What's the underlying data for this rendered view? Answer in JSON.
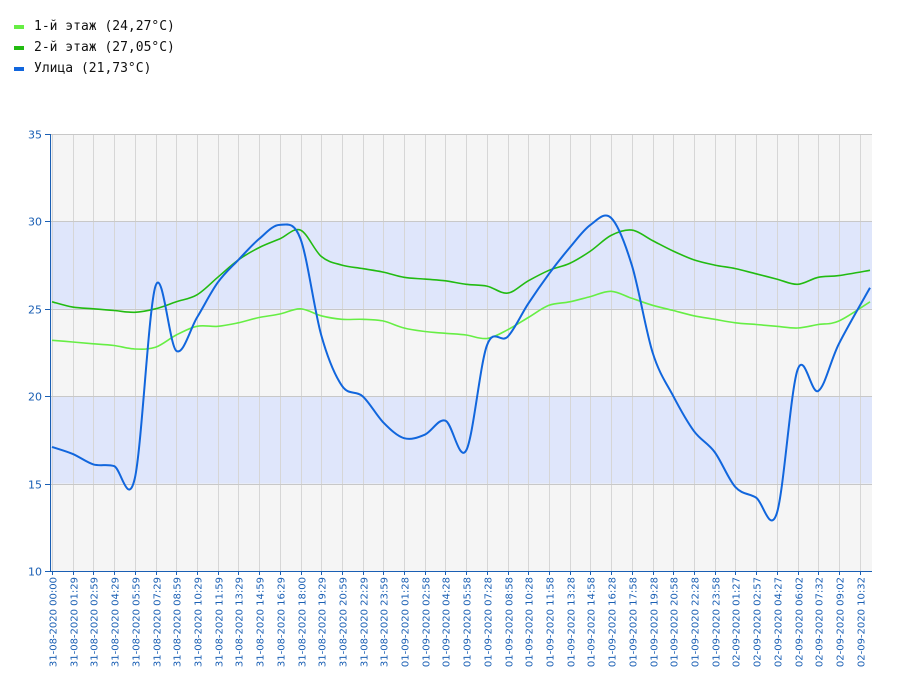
{
  "legend": [
    {
      "label": "1-й этаж (24,27°C)",
      "color": "#66ee44"
    },
    {
      "label": "2-й этаж (27,05°C)",
      "color": "#22bb11"
    },
    {
      "label": "Улица (21,73°C)",
      "color": "#1166dd"
    }
  ],
  "chart_data": {
    "type": "line",
    "title": "",
    "xlabel": "",
    "ylabel": "",
    "ylim": [
      10,
      35
    ],
    "yticks": [
      10,
      15,
      20,
      25,
      30,
      35
    ],
    "grid": true,
    "legend_position": "top-left",
    "band_colors": {
      "light": "#f5f5f5",
      "highlight": "#dfe6fb"
    },
    "highlight_bands": [
      [
        15,
        20
      ],
      [
        25,
        30
      ]
    ],
    "x_tick_labels": [
      "31-08-2020 00:00",
      "31-08-2020 01:29",
      "31-08-2020 02:59",
      "31-08-2020 04:29",
      "31-08-2020 05:59",
      "31-08-2020 07:29",
      "31-08-2020 08:59",
      "31-08-2020 10:29",
      "31-08-2020 11:59",
      "31-08-2020 13:29",
      "31-08-2020 14:59",
      "31-08-2020 16:29",
      "31-08-2020 18:00",
      "31-08-2020 19:29",
      "31-08-2020 20:59",
      "31-08-2020 22:29",
      "31-08-2020 23:59",
      "01-09-2020 01:28",
      "01-09-2020 02:58",
      "01-09-2020 04:28",
      "01-09-2020 05:58",
      "01-09-2020 07:28",
      "01-09-2020 08:58",
      "01-09-2020 10:28",
      "01-09-2020 11:58",
      "01-09-2020 13:28",
      "01-09-2020 14:58",
      "01-09-2020 16:28",
      "01-09-2020 17:58",
      "01-09-2020 19:28",
      "01-09-2020 20:58",
      "01-09-2020 22:28",
      "01-09-2020 23:58",
      "02-09-2020 01:27",
      "02-09-2020 02:57",
      "02-09-2020 04:27",
      "02-09-2020 06:02",
      "02-09-2020 07:32",
      "02-09-2020 09:02",
      "02-09-2020 10:32"
    ],
    "x": [
      "31-08-2020 00:00",
      "31-08-2020 01:29",
      "31-08-2020 02:59",
      "31-08-2020 04:29",
      "31-08-2020 05:59",
      "31-08-2020 07:29",
      "31-08-2020 08:59",
      "31-08-2020 10:29",
      "31-08-2020 11:59",
      "31-08-2020 13:29",
      "31-08-2020 14:59",
      "31-08-2020 16:29",
      "31-08-2020 18:00",
      "31-08-2020 19:29",
      "31-08-2020 20:59",
      "31-08-2020 22:29",
      "31-08-2020 23:59",
      "01-09-2020 01:28",
      "01-09-2020 02:58",
      "01-09-2020 04:28",
      "01-09-2020 05:58",
      "01-09-2020 07:28",
      "01-09-2020 08:58",
      "01-09-2020 10:28",
      "01-09-2020 11:58",
      "01-09-2020 13:28",
      "01-09-2020 14:58",
      "01-09-2020 16:28",
      "01-09-2020 17:58",
      "01-09-2020 19:28",
      "01-09-2020 20:58",
      "01-09-2020 22:28",
      "01-09-2020 23:58",
      "02-09-2020 01:27",
      "02-09-2020 02:57",
      "02-09-2020 04:27",
      "02-09-2020 06:02",
      "02-09-2020 07:32",
      "02-09-2020 09:02",
      "02-09-2020 10:32"
    ],
    "series": [
      {
        "name": "1-й этаж (24,27°C)",
        "color": "#66ee44",
        "values": [
          23.2,
          23.1,
          23.0,
          22.9,
          22.7,
          22.8,
          23.5,
          24.0,
          24.0,
          24.2,
          24.5,
          24.7,
          25.0,
          24.6,
          24.4,
          24.4,
          24.3,
          23.9,
          23.7,
          23.6,
          23.5,
          23.3,
          23.8,
          24.5,
          25.2,
          25.4,
          25.7,
          26.0,
          25.6,
          25.2,
          24.9,
          24.6,
          24.4,
          24.2,
          24.1,
          24.0,
          23.9,
          24.1,
          24.3,
          25.4
        ]
      },
      {
        "name": "2-й этаж (27,05°C)",
        "color": "#22bb11",
        "values": [
          25.4,
          25.1,
          25.0,
          24.9,
          24.8,
          25.0,
          25.4,
          25.8,
          26.8,
          27.8,
          28.5,
          29.0,
          29.5,
          28.0,
          27.5,
          27.3,
          27.1,
          26.8,
          26.7,
          26.6,
          26.4,
          26.3,
          25.9,
          26.6,
          27.2,
          27.6,
          28.3,
          29.2,
          29.5,
          28.9,
          28.3,
          27.8,
          27.5,
          27.3,
          27.0,
          26.7,
          26.4,
          26.8,
          26.9,
          27.2
        ]
      },
      {
        "name": "Улица (21,73°C)",
        "color": "#1166dd",
        "values": [
          17.1,
          16.7,
          16.1,
          16.0,
          15.3,
          26.3,
          22.6,
          24.5,
          26.5,
          27.8,
          29.0,
          29.8,
          29.0,
          23.5,
          20.6,
          20.0,
          18.5,
          17.6,
          17.8,
          18.6,
          16.9,
          22.9,
          23.4,
          25.3,
          27.0,
          28.5,
          29.8,
          30.2,
          27.5,
          22.5,
          20.0,
          18.0,
          16.8,
          14.8,
          14.2,
          13.3,
          21.5,
          20.3,
          23.0,
          26.2
        ]
      }
    ]
  }
}
